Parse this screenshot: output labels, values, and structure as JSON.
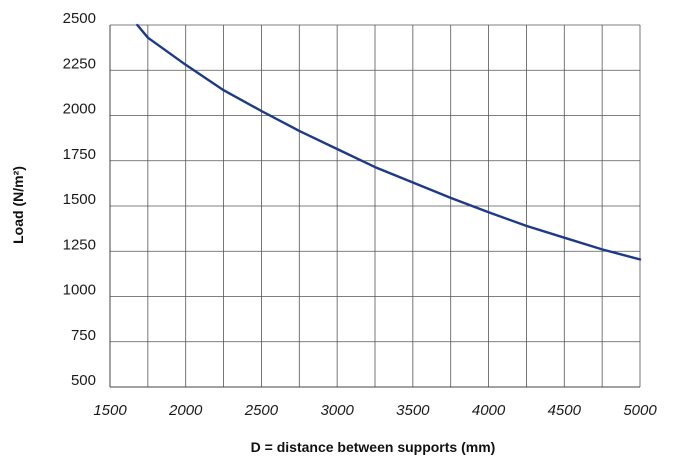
{
  "chart_data": {
    "type": "line",
    "title": "",
    "xlabel": "D = distance between supports (mm)",
    "ylabel": "Load (N/m²)",
    "xlim": [
      1500,
      5000
    ],
    "ylim": [
      500,
      2500
    ],
    "x_ticks": [
      "1500",
      "2000",
      "2500",
      "3000",
      "3500",
      "4000",
      "4500",
      "5000"
    ],
    "y_ticks": [
      "500",
      "750",
      "1000",
      "1250",
      "1500",
      "1750",
      "2000",
      "2250",
      "2500"
    ],
    "grid": true,
    "series": [
      {
        "x": [
          1680,
          1750,
          2000,
          2250,
          2500,
          2750,
          3000,
          3250,
          3500,
          3750,
          4000,
          4250,
          4500,
          4750,
          5000
        ],
        "values": [
          2500,
          2430,
          2280,
          2140,
          2025,
          1915,
          1815,
          1715,
          1630,
          1545,
          1465,
          1390,
          1325,
          1260,
          1205
        ]
      }
    ],
    "line_color": "#1d3a8a",
    "grid_color": "#555555"
  }
}
